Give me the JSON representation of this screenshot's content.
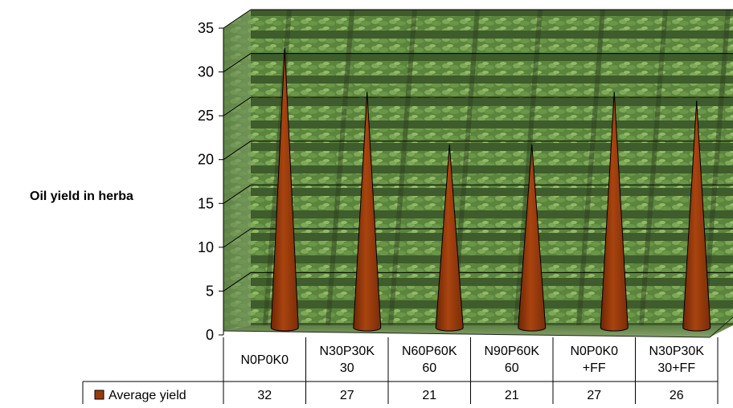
{
  "chart_data": {
    "type": "bar",
    "bar_shape": "cone",
    "title": "",
    "xlabel": "",
    "ylabel": "Oil yield in herba",
    "ylim": [
      0,
      35
    ],
    "yticks": [
      0,
      5,
      10,
      15,
      20,
      25,
      30,
      35
    ],
    "grid": true,
    "legend": "bottom-left (data table)",
    "categories": [
      [
        "N0P0K0"
      ],
      [
        "N30P30K",
        "30"
      ],
      [
        "N60P60K",
        "60"
      ],
      [
        "N90P60K",
        "60"
      ],
      [
        "N0P0K0",
        "+FF"
      ],
      [
        "N30P30K",
        "30+FF"
      ]
    ],
    "series": [
      {
        "name": "Average yield",
        "values": [
          32,
          27,
          21,
          21,
          27,
          26
        ],
        "color": "#9a3a0c"
      }
    ],
    "data_table": true,
    "background": "photo of herb field plots (green rows)"
  }
}
